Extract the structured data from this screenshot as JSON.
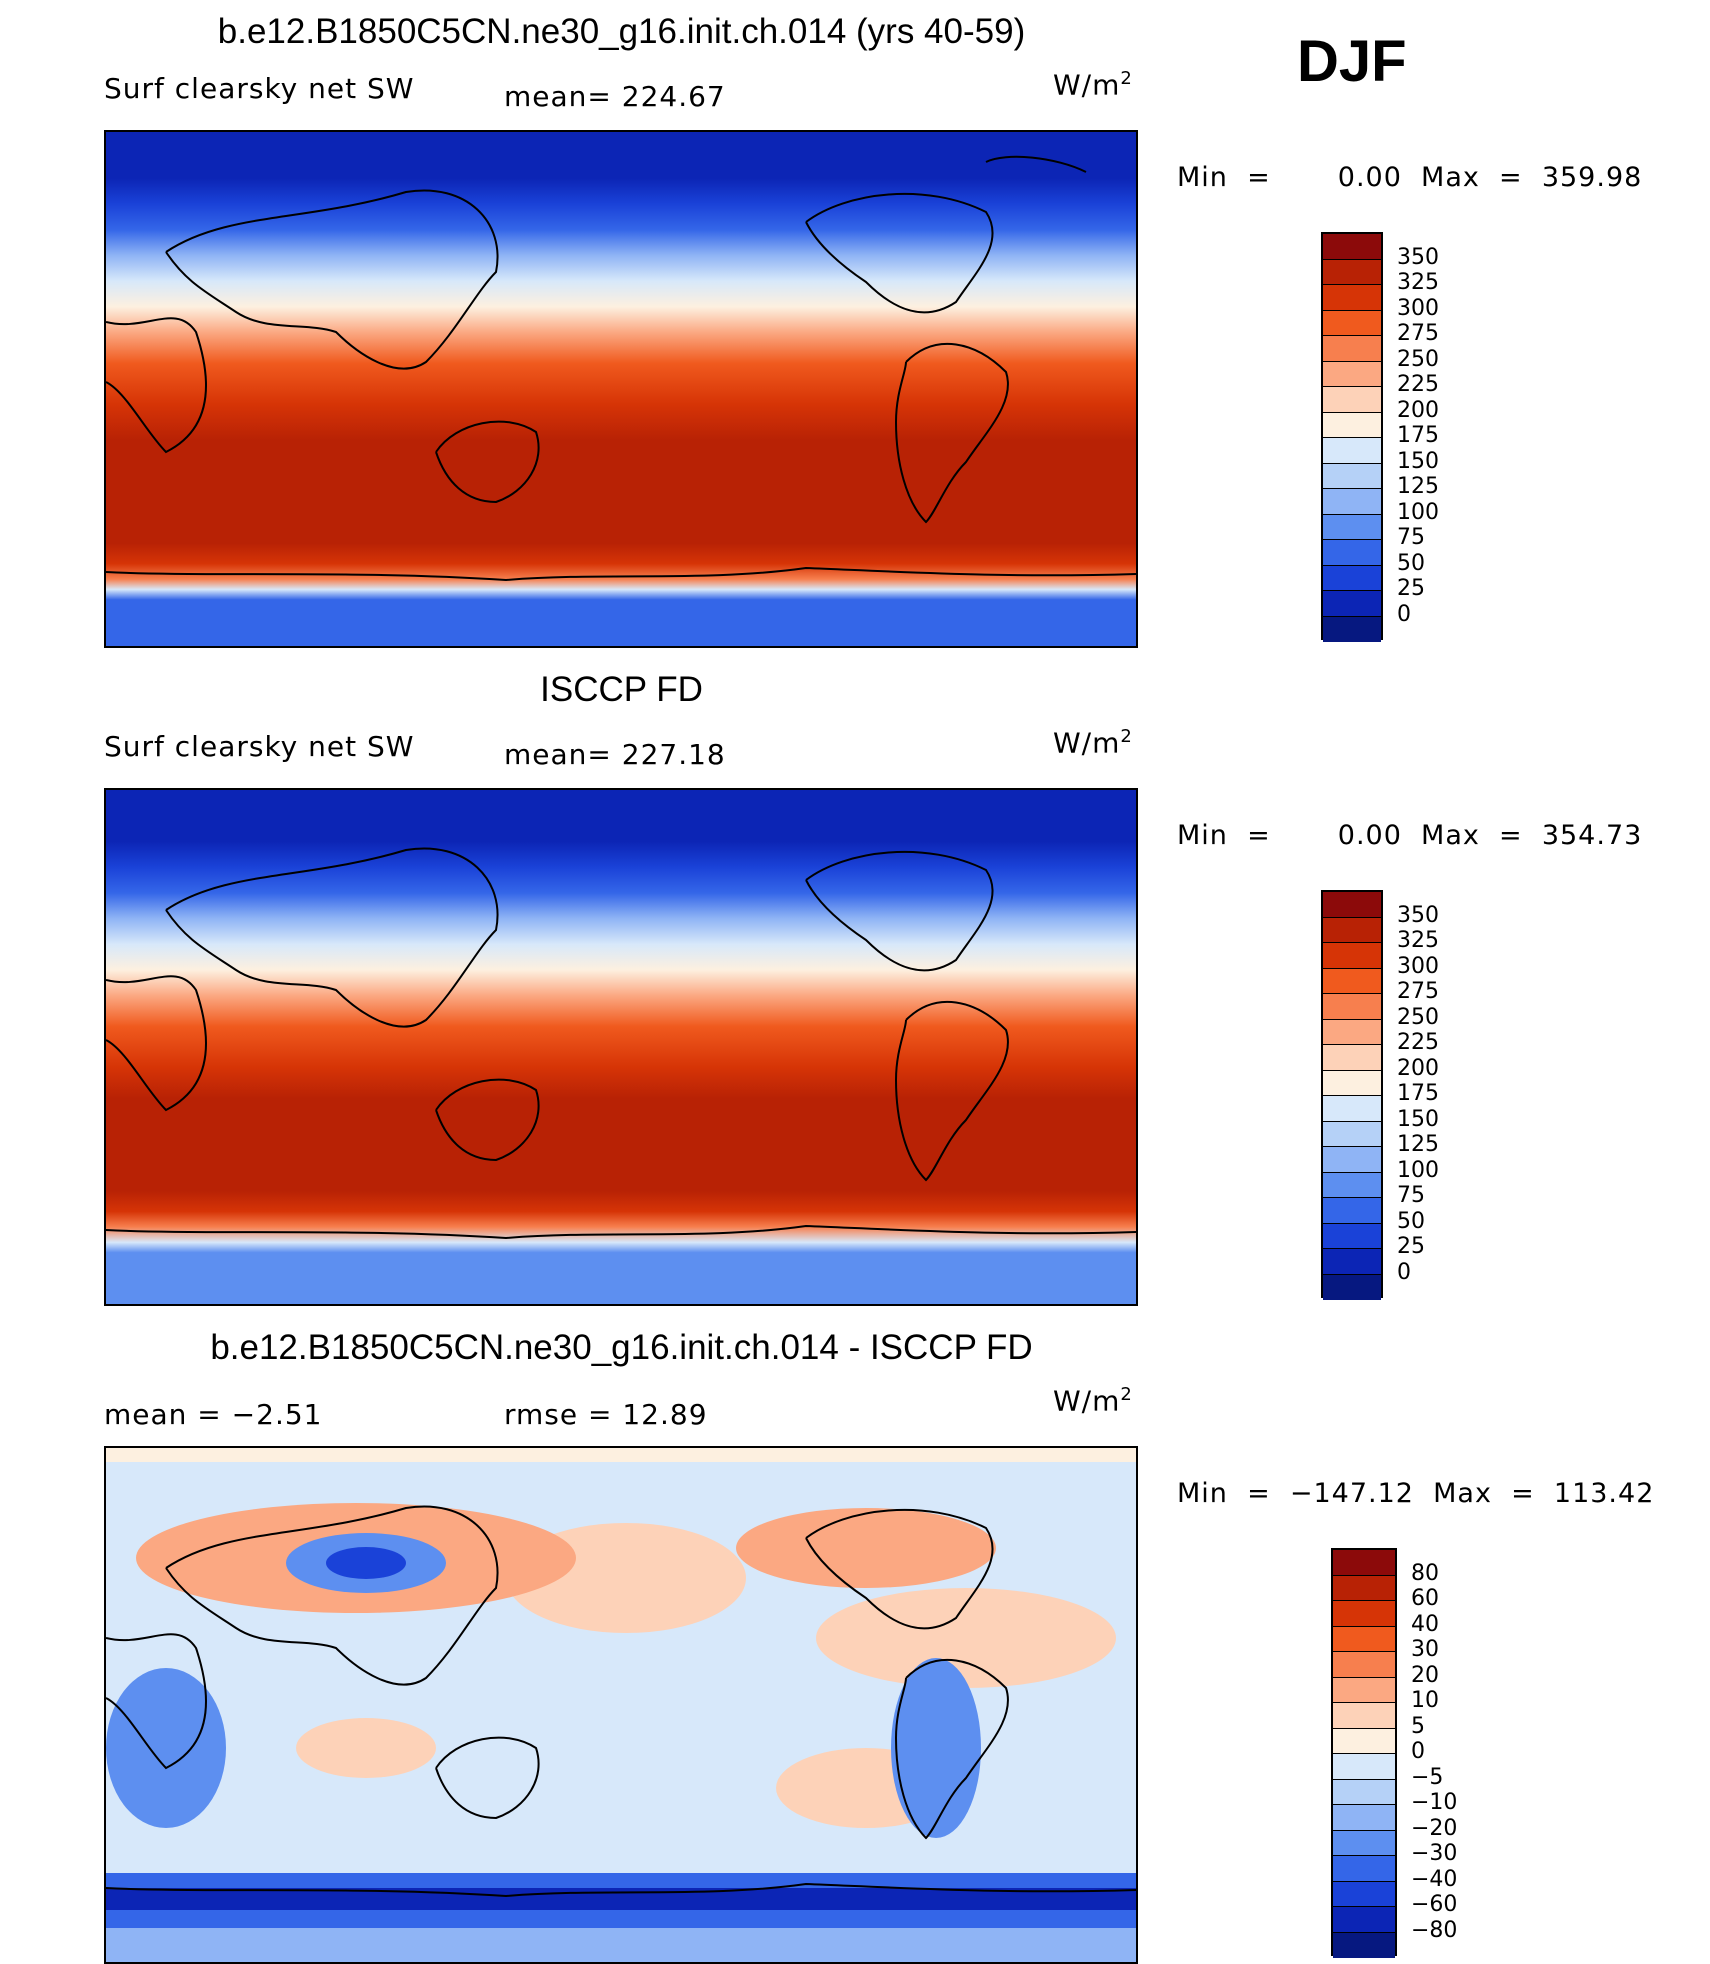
{
  "season": "DJF",
  "panels": [
    {
      "title": "b.e12.B1850C5CN.ne30_g16.init.ch.014 (yrs 40-59)",
      "left_label": "Surf  clearsky  net  SW",
      "center_label": "mean=  224.67",
      "units_base": "W/m",
      "units_exp": "2",
      "min_max": "Min  =       0.00  Max  =  359.98",
      "colorbar": {
        "labels": [
          "350",
          "325",
          "300",
          "275",
          "250",
          "225",
          "200",
          "175",
          "150",
          "125",
          "100",
          "75",
          "50",
          "25",
          "0"
        ],
        "colors": [
          "#8c0a0a",
          "#b82205",
          "#d63406",
          "#f05a1e",
          "#f77f4e",
          "#fba882",
          "#fdd2b8",
          "#fdf0e0",
          "#d7e8fa",
          "#b5d1f7",
          "#8fb4f5",
          "#5d8ff0",
          "#3466e8",
          "#1a42d8",
          "#0c25b5",
          "#061880"
        ]
      }
    },
    {
      "title": "ISCCP FD",
      "left_label": "Surf  clearsky  net  SW",
      "center_label": "mean=  227.18",
      "units_base": "W/m",
      "units_exp": "2",
      "min_max": "Min  =       0.00  Max  =  354.73",
      "colorbar": {
        "labels": [
          "350",
          "325",
          "300",
          "275",
          "250",
          "225",
          "200",
          "175",
          "150",
          "125",
          "100",
          "75",
          "50",
          "25",
          "0"
        ],
        "colors": [
          "#8c0a0a",
          "#b82205",
          "#d63406",
          "#f05a1e",
          "#f77f4e",
          "#fba882",
          "#fdd2b8",
          "#fdf0e0",
          "#d7e8fa",
          "#b5d1f7",
          "#8fb4f5",
          "#5d8ff0",
          "#3466e8",
          "#1a42d8",
          "#0c25b5",
          "#061880"
        ]
      }
    },
    {
      "title": "b.e12.B1850C5CN.ne30_g16.init.ch.014 - ISCCP FD",
      "left_label": "mean  =     −2.51",
      "center_label": "rmse  =     12.89",
      "units_base": "W/m",
      "units_exp": "2",
      "min_max": "Min  =  −147.12  Max  =  113.42",
      "colorbar": {
        "labels": [
          "80",
          "60",
          "40",
          "30",
          "20",
          "10",
          "5",
          "0",
          "−5",
          "−10",
          "−20",
          "−30",
          "−40",
          "−60",
          "−80"
        ],
        "colors": [
          "#8c0a0a",
          "#b82205",
          "#d63406",
          "#f05a1e",
          "#f77f4e",
          "#fba882",
          "#fdd2b8",
          "#fdf0e0",
          "#d7e8fa",
          "#b5d1f7",
          "#8fb4f5",
          "#5d8ff0",
          "#3466e8",
          "#1a42d8",
          "#0c25b5",
          "#061880"
        ]
      }
    }
  ]
}
